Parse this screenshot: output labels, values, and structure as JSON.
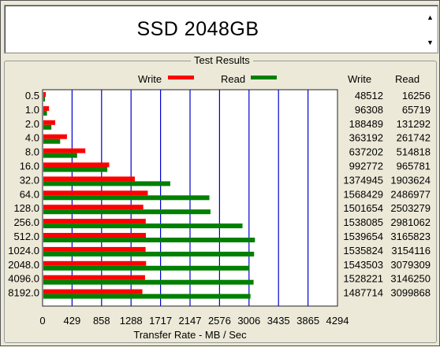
{
  "window": {
    "title": "SSD  2048GB"
  },
  "results": {
    "group_title": "Test Results",
    "legend": {
      "write_label": "Write",
      "read_label": "Read",
      "write_color": "#ff0000",
      "read_color": "#008000"
    },
    "columns": {
      "write": "Write",
      "read": "Read"
    },
    "x_axis_label": "Transfer Rate - MB / Sec",
    "x_ticks": [
      "0",
      "429",
      "858",
      "1288",
      "1717",
      "2147",
      "2576",
      "3006",
      "3435",
      "3865",
      "4294"
    ]
  },
  "chart_data": {
    "type": "bar",
    "orientation": "horizontal",
    "xlim": [
      0,
      4294
    ],
    "grid": true,
    "categories": [
      "0.5",
      "1.0",
      "2.0",
      "4.0",
      "8.0",
      "16.0",
      "32.0",
      "64.0",
      "128.0",
      "256.0",
      "512.0",
      "1024.0",
      "2048.0",
      "4096.0",
      "8192.0"
    ],
    "series": [
      {
        "name": "Write",
        "color": "#ff0000",
        "display_values": [
          "48512",
          "96308",
          "188489",
          "363192",
          "637202",
          "992772",
          "1374945",
          "1568429",
          "1501654",
          "1538085",
          "1539654",
          "1535824",
          "1543503",
          "1528221",
          "1487714"
        ],
        "values": [
          47,
          94,
          184,
          355,
          622,
          970,
          1343,
          1532,
          1466,
          1502,
          1504,
          1500,
          1507,
          1492,
          1453
        ]
      },
      {
        "name": "Read",
        "color": "#008000",
        "display_values": [
          "16256",
          "65719",
          "131292",
          "261742",
          "514818",
          "965781",
          "1903624",
          "2486977",
          "2503279",
          "2981062",
          "3165823",
          "3154116",
          "3079309",
          "3146250",
          "3099868"
        ],
        "values": [
          16,
          64,
          128,
          256,
          503,
          943,
          1859,
          2429,
          2445,
          2911,
          3092,
          3080,
          3007,
          3072,
          3027
        ]
      }
    ]
  }
}
